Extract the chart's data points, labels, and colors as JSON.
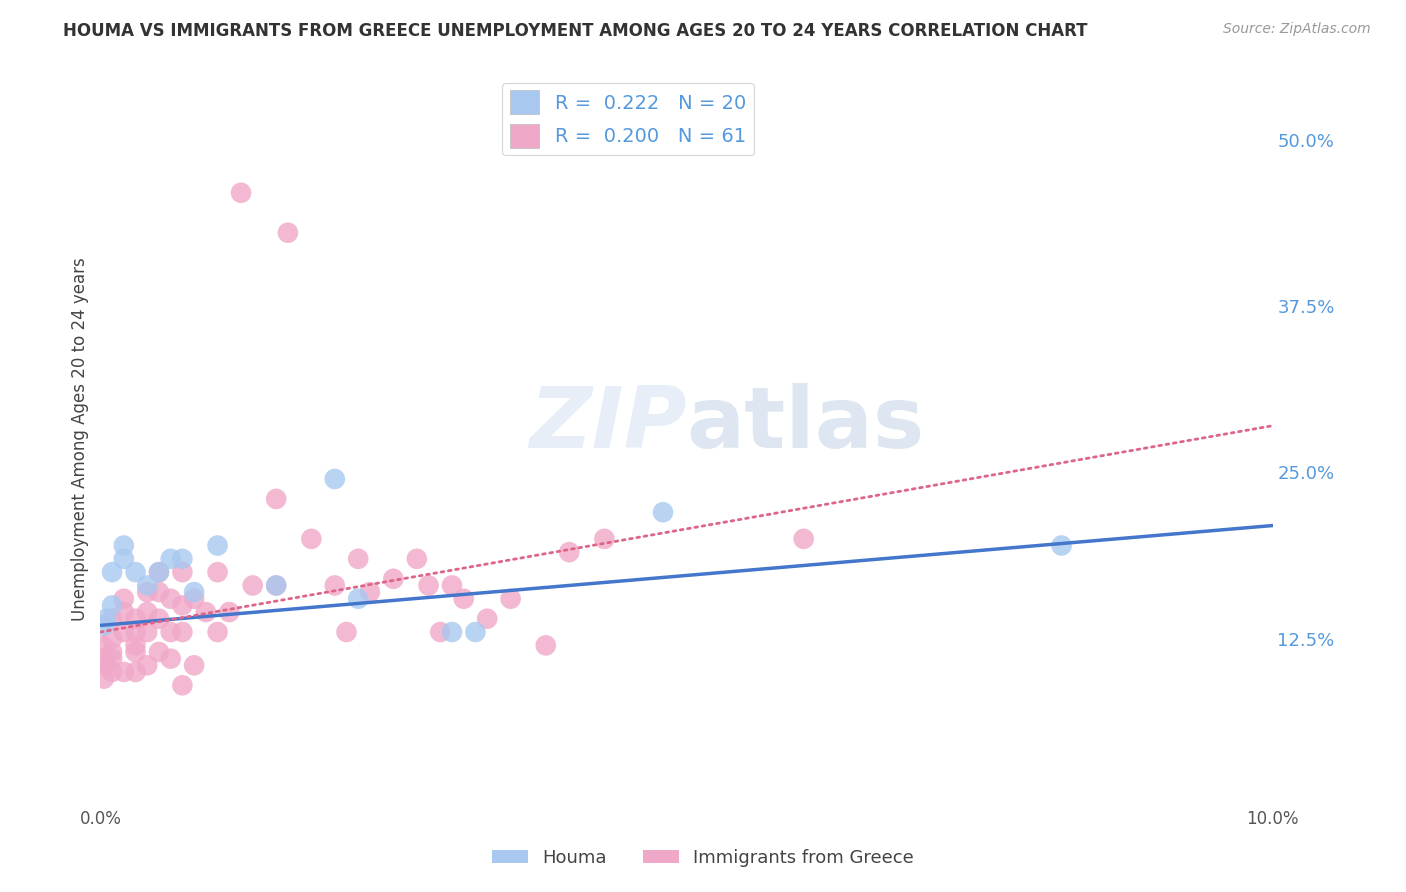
{
  "title": "HOUMA VS IMMIGRANTS FROM GREECE UNEMPLOYMENT AMONG AGES 20 TO 24 YEARS CORRELATION CHART",
  "source": "Source: ZipAtlas.com",
  "ylabel": "Unemployment Among Ages 20 to 24 years",
  "xlim": [
    0.0,
    0.1
  ],
  "ylim": [
    0.0,
    0.55
  ],
  "houma_R": "0.222",
  "houma_N": "20",
  "greece_R": "0.200",
  "greece_N": "61",
  "houma_color": "#a8c8f0",
  "greece_color": "#f0a8c8",
  "houma_line_color": "#4477cc",
  "greece_line_color": "#dd6688",
  "background_color": "#ffffff",
  "grid_color": "#cccccc",
  "label_color": "#5599dd",
  "houma_x": [
    0.0003,
    0.0005,
    0.001,
    0.001,
    0.002,
    0.002,
    0.003,
    0.004,
    0.005,
    0.006,
    0.007,
    0.008,
    0.01,
    0.015,
    0.02,
    0.022,
    0.03,
    0.032,
    0.048,
    0.082
  ],
  "houma_y": [
    0.135,
    0.14,
    0.15,
    0.175,
    0.185,
    0.195,
    0.175,
    0.165,
    0.175,
    0.185,
    0.185,
    0.16,
    0.195,
    0.165,
    0.245,
    0.155,
    0.13,
    0.13,
    0.22,
    0.195
  ],
  "greece_x": [
    0.0001,
    0.0002,
    0.0003,
    0.0005,
    0.001,
    0.001,
    0.001,
    0.001,
    0.001,
    0.002,
    0.002,
    0.002,
    0.002,
    0.003,
    0.003,
    0.003,
    0.003,
    0.003,
    0.004,
    0.004,
    0.004,
    0.004,
    0.005,
    0.005,
    0.005,
    0.005,
    0.006,
    0.006,
    0.006,
    0.007,
    0.007,
    0.007,
    0.007,
    0.008,
    0.008,
    0.009,
    0.01,
    0.01,
    0.011,
    0.012,
    0.013,
    0.015,
    0.015,
    0.016,
    0.018,
    0.02,
    0.021,
    0.022,
    0.023,
    0.025,
    0.027,
    0.028,
    0.029,
    0.03,
    0.031,
    0.033,
    0.035,
    0.038,
    0.04,
    0.043,
    0.06
  ],
  "greece_y": [
    0.11,
    0.12,
    0.095,
    0.105,
    0.11,
    0.1,
    0.125,
    0.14,
    0.115,
    0.13,
    0.1,
    0.145,
    0.155,
    0.115,
    0.14,
    0.1,
    0.13,
    0.12,
    0.145,
    0.105,
    0.13,
    0.16,
    0.14,
    0.115,
    0.16,
    0.175,
    0.13,
    0.155,
    0.11,
    0.175,
    0.13,
    0.15,
    0.09,
    0.155,
    0.105,
    0.145,
    0.175,
    0.13,
    0.145,
    0.46,
    0.165,
    0.23,
    0.165,
    0.43,
    0.2,
    0.165,
    0.13,
    0.185,
    0.16,
    0.17,
    0.185,
    0.165,
    0.13,
    0.165,
    0.155,
    0.14,
    0.155,
    0.12,
    0.19,
    0.2,
    0.2
  ],
  "houma_trendline_x0": 0.0,
  "houma_trendline_x1": 0.1,
  "houma_trendline_y0": 0.135,
  "houma_trendline_y1": 0.21,
  "greece_trendline_x0": 0.0,
  "greece_trendline_x1": 0.1,
  "greece_trendline_y0": 0.13,
  "greece_trendline_y1": 0.285
}
